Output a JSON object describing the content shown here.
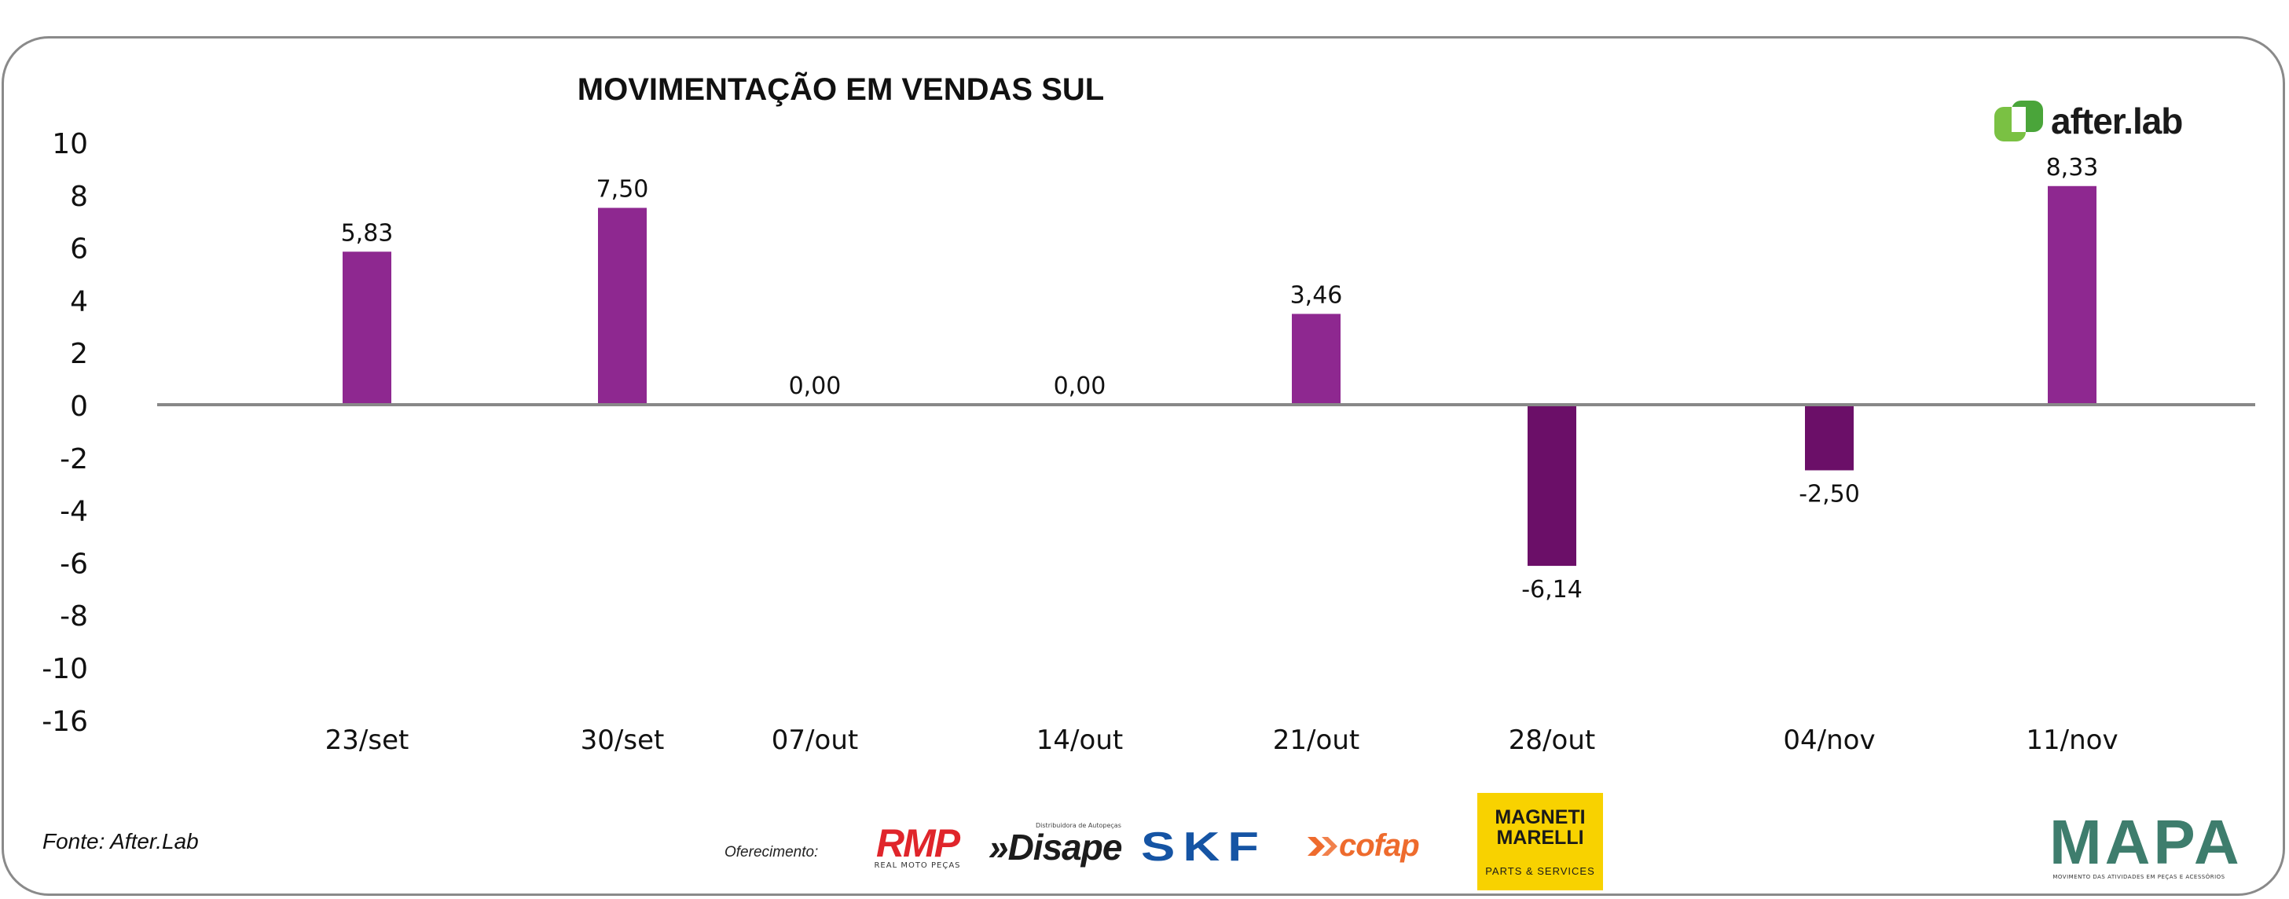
{
  "chart_data": {
    "type": "bar",
    "title": "MOVIMENTAÇÃO EM VENDAS SUL",
    "xlabel": "",
    "ylabel": "",
    "categories": [
      "23/set",
      "30/set",
      "07/out",
      "14/out",
      "21/out",
      "28/out",
      "04/nov",
      "11/nov"
    ],
    "values": [
      5.83,
      7.5,
      0.0,
      0.0,
      3.46,
      -6.14,
      -2.5,
      8.33
    ],
    "data_labels": [
      "5,83",
      "7,50",
      "0,00",
      "0,00",
      "3,46",
      "-6,14",
      "-2,50",
      "8,33"
    ],
    "y_ticks": [
      "10",
      "8",
      "6",
      "4",
      "2",
      "0",
      "-2",
      "-4",
      "-6",
      "-8",
      "-10",
      "-16"
    ],
    "ylim": [
      -16,
      10
    ],
    "grid": false,
    "legend": "none",
    "colors": {
      "positive": "#8e2890",
      "negative": "#6b0f68",
      "axis": "#888888"
    }
  },
  "source": "Fonte: After.Lab",
  "sponsor_label": "Oferecimento:",
  "logos": {
    "afterlab": "after.lab",
    "rmp": "RMP",
    "rmp_sub": "REAL MOTO PEÇAS",
    "disape_tag": "Distribuidora de Autopeças",
    "disape": "»Disape",
    "skf": "SKF",
    "cofap": "cofap",
    "magneti_1": "MAGNETI",
    "magneti_2": "MARELLI",
    "magneti_3": "PARTS & SERVICES",
    "mapa": "MAPA",
    "mapa_sub": "MOVIMENTO DAS ATIVIDADES EM PEÇAS E ACESSÓRIOS"
  }
}
